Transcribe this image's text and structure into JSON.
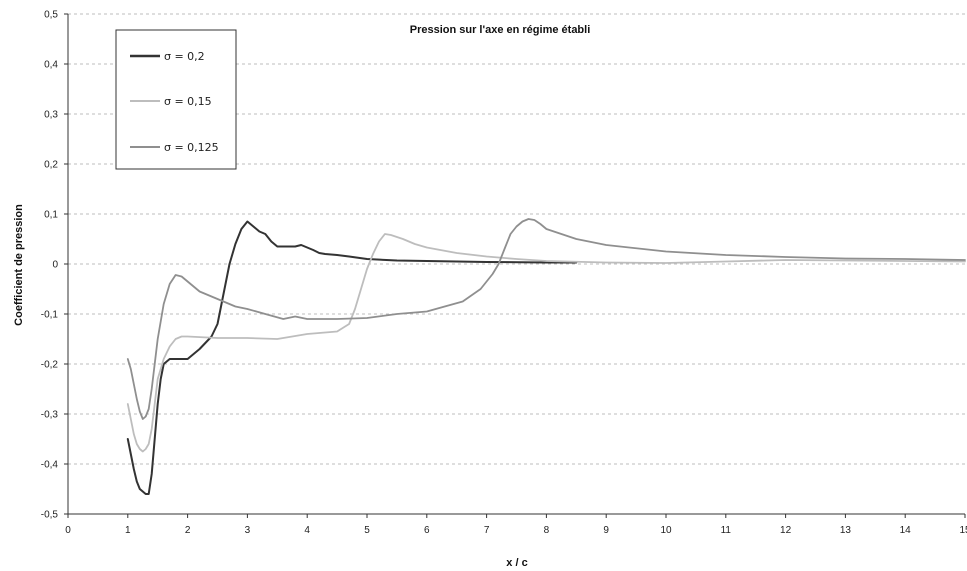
{
  "chart_data": {
    "type": "line",
    "title": "Pression sur l'axe en régime établi",
    "xlabel": "x / c",
    "ylabel": "Coefficient de pression",
    "xlim": [
      0,
      15
    ],
    "ylim": [
      -0.5,
      0.5
    ],
    "xticks": [
      0,
      1,
      2,
      3,
      4,
      5,
      6,
      7,
      8,
      9,
      10,
      11,
      12,
      13,
      14,
      15
    ],
    "xtick_labels": [
      "0",
      "1",
      "2",
      "3",
      "4",
      "5",
      "6",
      "7",
      "8",
      "9",
      "10",
      "11",
      "12",
      "13",
      "14",
      "15"
    ],
    "yticks": [
      -0.5,
      -0.4,
      -0.3,
      -0.2,
      -0.1,
      0,
      0.1,
      0.2,
      0.3,
      0.4,
      0.5
    ],
    "ytick_labels": [
      "-0,5",
      "-0,4",
      "-0,3",
      "-0,2",
      "-0,1",
      "0",
      "0,1",
      "0,2",
      "0,3",
      "0,4",
      "0,5"
    ],
    "grid": "horizontal dashed",
    "legend_position": "top-left",
    "series": [
      {
        "name": "σ = 0,2",
        "color": "#333333",
        "x": [
          1.0,
          1.05,
          1.1,
          1.15,
          1.2,
          1.3,
          1.35,
          1.4,
          1.45,
          1.5,
          1.55,
          1.6,
          1.7,
          1.8,
          2.0,
          2.2,
          2.4,
          2.5,
          2.6,
          2.7,
          2.8,
          2.9,
          3.0,
          3.05,
          3.1,
          3.2,
          3.3,
          3.4,
          3.5,
          3.6,
          3.8,
          3.9,
          4.0,
          4.1,
          4.2,
          4.3,
          4.5,
          4.7,
          5.0,
          5.5,
          6.0,
          7.0,
          8.0,
          8.5
        ],
        "y": [
          -0.35,
          -0.38,
          -0.41,
          -0.435,
          -0.45,
          -0.46,
          -0.46,
          -0.42,
          -0.35,
          -0.28,
          -0.23,
          -0.2,
          -0.19,
          -0.19,
          -0.19,
          -0.17,
          -0.145,
          -0.12,
          -0.06,
          0.0,
          0.04,
          0.07,
          0.085,
          0.08,
          0.075,
          0.065,
          0.06,
          0.045,
          0.035,
          0.035,
          0.035,
          0.038,
          0.033,
          0.028,
          0.022,
          0.02,
          0.018,
          0.015,
          0.01,
          0.007,
          0.006,
          0.004,
          0.003,
          0.003
        ]
      },
      {
        "name": "σ = 0,15",
        "color": "#bdbdbd",
        "x": [
          1.0,
          1.05,
          1.1,
          1.15,
          1.2,
          1.25,
          1.3,
          1.35,
          1.4,
          1.45,
          1.5,
          1.6,
          1.7,
          1.8,
          1.9,
          2.0,
          2.5,
          3.0,
          3.5,
          4.0,
          4.5,
          4.7,
          4.8,
          4.9,
          5.0,
          5.1,
          5.2,
          5.3,
          5.4,
          5.6,
          5.8,
          6.0,
          6.5,
          7.0,
          7.5,
          8.0,
          9.0,
          10.0,
          11.0,
          12.0,
          13.0,
          14.0,
          15.0
        ],
        "y": [
          -0.28,
          -0.31,
          -0.34,
          -0.36,
          -0.37,
          -0.375,
          -0.37,
          -0.36,
          -0.33,
          -0.28,
          -0.23,
          -0.19,
          -0.165,
          -0.15,
          -0.145,
          -0.145,
          -0.148,
          -0.148,
          -0.15,
          -0.14,
          -0.135,
          -0.12,
          -0.09,
          -0.05,
          -0.01,
          0.02,
          0.045,
          0.06,
          0.058,
          0.05,
          0.04,
          0.033,
          0.022,
          0.015,
          0.01,
          0.006,
          0.003,
          0.002,
          0.005,
          0.008,
          0.007,
          0.006,
          0.005
        ]
      },
      {
        "name": "σ = 0,125",
        "color": "#8f8f8f",
        "x": [
          1.0,
          1.05,
          1.1,
          1.15,
          1.2,
          1.25,
          1.3,
          1.35,
          1.4,
          1.45,
          1.5,
          1.6,
          1.7,
          1.8,
          1.9,
          2.0,
          2.2,
          2.5,
          2.8,
          3.0,
          3.3,
          3.6,
          3.8,
          4.0,
          4.5,
          5.0,
          5.5,
          6.0,
          6.3,
          6.6,
          6.9,
          7.1,
          7.2,
          7.3,
          7.4,
          7.5,
          7.6,
          7.7,
          7.8,
          7.9,
          8.0,
          8.5,
          9.0,
          10.0,
          11.0,
          12.0,
          13.0,
          14.0,
          15.0
        ],
        "y": [
          -0.19,
          -0.21,
          -0.24,
          -0.27,
          -0.295,
          -0.31,
          -0.305,
          -0.29,
          -0.25,
          -0.2,
          -0.15,
          -0.08,
          -0.04,
          -0.022,
          -0.025,
          -0.035,
          -0.055,
          -0.07,
          -0.085,
          -0.09,
          -0.1,
          -0.11,
          -0.105,
          -0.11,
          -0.11,
          -0.108,
          -0.1,
          -0.095,
          -0.085,
          -0.075,
          -0.05,
          -0.02,
          0.0,
          0.03,
          0.06,
          0.075,
          0.085,
          0.09,
          0.088,
          0.08,
          0.07,
          0.05,
          0.038,
          0.025,
          0.018,
          0.014,
          0.011,
          0.01,
          0.008
        ]
      }
    ]
  }
}
